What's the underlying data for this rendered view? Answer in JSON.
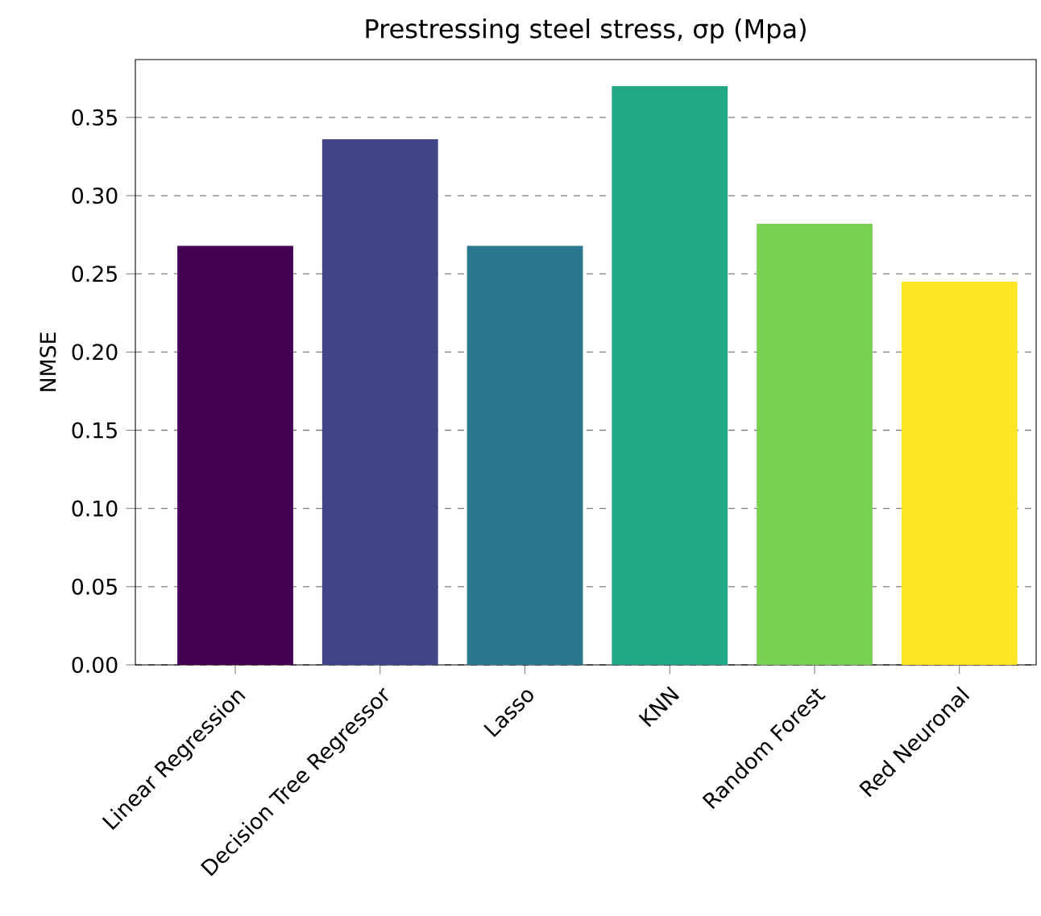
{
  "chart_data": {
    "type": "bar",
    "title": "Prestressing steel stress, σp (Mpa)",
    "ylabel": "NMSE",
    "categories": [
      "Linear Regression",
      "Decision Tree Regressor",
      "Lasso",
      "KNN",
      "Random Forest",
      "Red Neuronal"
    ],
    "values": [
      0.268,
      0.336,
      0.268,
      0.37,
      0.282,
      0.245
    ],
    "colors": [
      "#440154",
      "#414487",
      "#2a788e",
      "#22a884",
      "#7ad151",
      "#fde725"
    ],
    "ylim": [
      0,
      0.387
    ],
    "yticks": [
      {
        "value": 0,
        "label": "0.00"
      },
      {
        "value": 0.05,
        "label": "0.05"
      },
      {
        "value": 0.1,
        "label": "0.10"
      },
      {
        "value": 0.15,
        "label": "0.15"
      },
      {
        "value": 0.2,
        "label": "0.20"
      },
      {
        "value": 0.25,
        "label": "0.25"
      },
      {
        "value": 0.3,
        "label": "0.30"
      },
      {
        "value": 0.35,
        "label": "0.35"
      }
    ],
    "grid": "y"
  }
}
